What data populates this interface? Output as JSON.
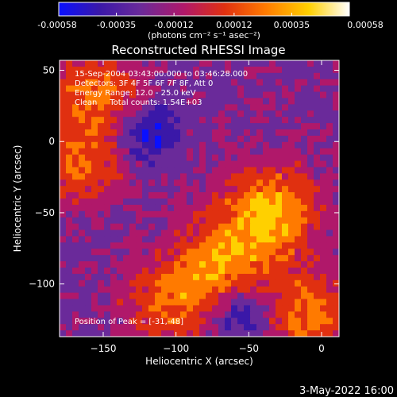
{
  "window": {
    "title": "Reconstructed RHESSI Image",
    "footer_date": "3-May-2022 16:00"
  },
  "colorbar": {
    "ticks": [
      "-0.00058",
      "-0.00035",
      "-0.00012",
      "0.00012",
      "0.00035",
      "0.00058"
    ],
    "tick_values": [
      -0.00058,
      -0.00035,
      -0.00012,
      0.00012,
      0.00035,
      0.00058
    ],
    "range": [
      -0.00058,
      0.00058
    ],
    "units": "(photons cm⁻² s⁻¹ asec⁻²)",
    "colors": [
      "#0a10ff",
      "#3a18a8",
      "#6a2a9a",
      "#b0186a",
      "#e03010",
      "#ff7a00",
      "#ffd000",
      "#ffffff"
    ]
  },
  "info": {
    "line1": "15-Sep-2004 03:43:00.000 to 03:46:28.000",
    "line2": "Detectors: 3F 4F 5F 6F 7F 8F, Att 0",
    "line3": "Energy Range: 12.0 - 25.0 keV",
    "line4": "Clean     Total counts: 1.54E+03",
    "peak": "Position of Peak = [-31,-48]"
  },
  "chart_data": {
    "type": "heatmap",
    "title": "Reconstructed RHESSI Image",
    "xlabel": "Heliocentric X (arcsec)",
    "ylabel": "Heliocentric Y (arcsec)",
    "xlim": [
      -180,
      12
    ],
    "ylim": [
      -137,
      57
    ],
    "xticks": [
      -150,
      -100,
      -50,
      0
    ],
    "yticks": [
      50,
      0,
      -50,
      -100
    ],
    "xtick_labels": [
      "−150",
      "−100",
      "−50",
      "0"
    ],
    "ytick_labels": [
      "50",
      "0",
      "−50",
      "−100"
    ],
    "peak": [
      -31,
      -48
    ],
    "sources": [
      {
        "x": -35,
        "y": -50,
        "peak_flux": 0.00058
      },
      {
        "x": -70,
        "y": -85,
        "peak_flux": 0.00045
      },
      {
        "x": -155,
        "y": 35,
        "peak_flux": 0.0004
      },
      {
        "x": -165,
        "y": -15,
        "peak_flux": 0.00035
      },
      {
        "x": -105,
        "y": -115,
        "peak_flux": 0.00038
      },
      {
        "x": -10,
        "y": -120,
        "peak_flux": 0.00042
      }
    ],
    "blue_regions": [
      {
        "x": -120,
        "y": 5
      },
      {
        "x": -55,
        "y": -120
      }
    ]
  }
}
